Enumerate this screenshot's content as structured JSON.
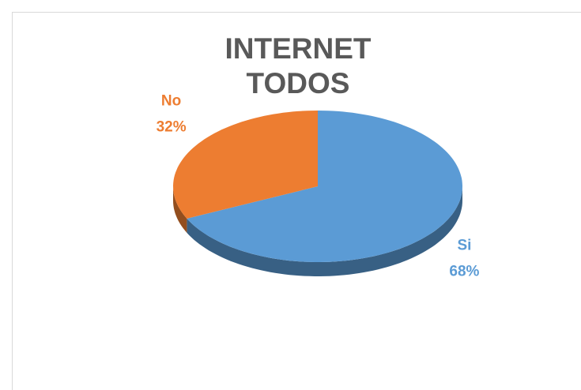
{
  "chart_data": {
    "type": "pie",
    "title": "INTERNET TODOS",
    "categories": [
      "Si",
      "No"
    ],
    "values": [
      68,
      32
    ],
    "value_labels": [
      "68%",
      "32%"
    ],
    "colors": [
      "#5b9bd5",
      "#ed7d31"
    ]
  }
}
